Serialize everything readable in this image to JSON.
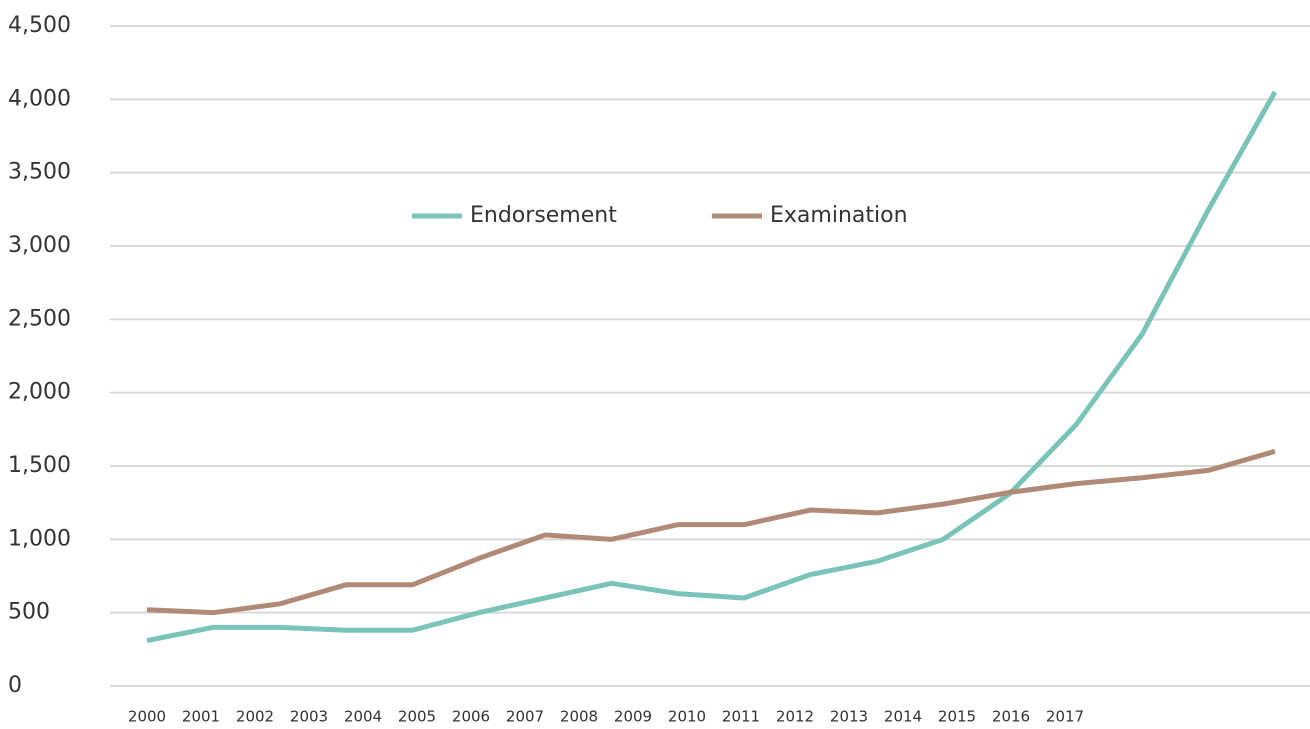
{
  "chart_data": {
    "type": "line",
    "categories": [
      "2000",
      "2001",
      "2002",
      "2003",
      "2004",
      "2005",
      "2006",
      "2007",
      "2008",
      "2009",
      "2010",
      "2011",
      "2012",
      "2013",
      "2014",
      "2015",
      "2016",
      "2017"
    ],
    "series": [
      {
        "name": "Endorsement",
        "color": "#7ac3b9",
        "values": [
          310,
          400,
          400,
          380,
          380,
          500,
          600,
          700,
          630,
          600,
          760,
          850,
          1000,
          1310,
          1780,
          2400,
          3250,
          4050
        ]
      },
      {
        "name": "Examination",
        "color": "#b08a76",
        "values": [
          520,
          500,
          560,
          690,
          690,
          870,
          1030,
          1000,
          1100,
          1100,
          1200,
          1180,
          1240,
          1320,
          1380,
          1420,
          1470,
          1600
        ]
      }
    ],
    "ylim": [
      0,
      4500
    ],
    "yticks": [
      0,
      {
        "value": 500,
        "label": "500"
      },
      {
        "value": 1000,
        "label": "1,000"
      },
      {
        "value": 1500,
        "label": "1,500"
      },
      {
        "value": 2000,
        "label": "2,000"
      },
      {
        "value": 2500,
        "label": "2,500"
      },
      {
        "value": 3000,
        "label": "3,000"
      },
      {
        "value": 3500,
        "label": "3,500"
      },
      {
        "value": 4000,
        "label": "4,000"
      },
      {
        "value": 4500,
        "label": "4,500"
      }
    ],
    "grid": true,
    "legend": "top"
  }
}
